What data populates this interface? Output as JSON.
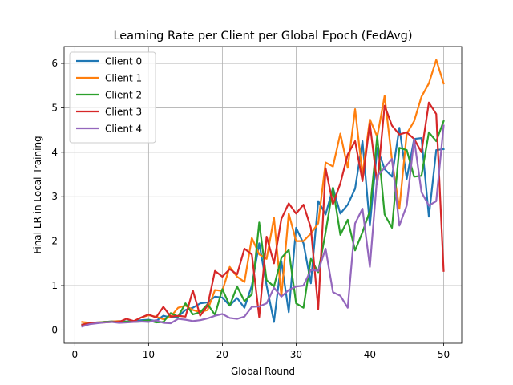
{
  "chart_data": {
    "type": "line",
    "title": "Learning Rate per Client per Global Epoch (FedAvg)",
    "xlabel": "Global Round",
    "ylabel": "Final LR in Local Training",
    "xlim": [
      -1.45,
      52.45
    ],
    "ylim": [
      -0.3,
      6.38
    ],
    "xticks": [
      0,
      10,
      20,
      30,
      40,
      50
    ],
    "yticks": [
      0,
      1,
      2,
      3,
      4,
      5,
      6
    ],
    "grid": true,
    "legend": "top-left",
    "x": [
      1,
      2,
      3,
      4,
      5,
      6,
      7,
      8,
      9,
      10,
      11,
      12,
      13,
      14,
      15,
      16,
      17,
      18,
      19,
      20,
      21,
      22,
      23,
      24,
      25,
      26,
      27,
      28,
      29,
      30,
      31,
      32,
      33,
      34,
      35,
      36,
      37,
      38,
      39,
      40,
      41,
      42,
      43,
      44,
      45,
      46,
      47,
      48,
      49,
      50
    ],
    "series": [
      {
        "name": "Client 0",
        "color": "#1f77b4",
        "values": [
          0.1,
          0.15,
          0.17,
          0.18,
          0.19,
          0.2,
          0.19,
          0.2,
          0.22,
          0.23,
          0.2,
          0.32,
          0.28,
          0.3,
          0.45,
          0.5,
          0.6,
          0.62,
          0.75,
          0.73,
          0.55,
          0.72,
          0.5,
          1.0,
          1.95,
          1.0,
          0.18,
          1.55,
          0.4,
          2.3,
          1.95,
          1.05,
          2.9,
          2.6,
          3.2,
          2.62,
          2.82,
          3.18,
          4.25,
          2.35,
          4.1,
          3.62,
          3.45,
          4.55,
          3.4,
          4.3,
          4.32,
          2.55,
          4.05,
          4.07
        ]
      },
      {
        "name": "Client 1",
        "color": "#ff7f0e",
        "values": [
          0.18,
          0.16,
          0.17,
          0.18,
          0.19,
          0.2,
          0.18,
          0.2,
          0.28,
          0.33,
          0.3,
          0.24,
          0.3,
          0.5,
          0.55,
          0.45,
          0.4,
          0.45,
          0.9,
          0.88,
          1.42,
          1.2,
          1.08,
          2.07,
          1.7,
          1.6,
          2.53,
          0.75,
          2.62,
          2.0,
          2.0,
          2.17,
          2.4,
          3.77,
          3.68,
          4.42,
          3.65,
          4.97,
          3.5,
          4.74,
          4.35,
          5.27,
          3.82,
          2.73,
          4.42,
          4.7,
          5.25,
          5.55,
          6.08,
          5.55
        ]
      },
      {
        "name": "Client 2",
        "color": "#2ca02c",
        "values": [
          0.12,
          0.15,
          0.16,
          0.18,
          0.19,
          0.17,
          0.19,
          0.18,
          0.19,
          0.22,
          0.17,
          0.18,
          0.38,
          0.3,
          0.6,
          0.35,
          0.4,
          0.58,
          0.34,
          0.92,
          0.55,
          0.98,
          0.65,
          0.8,
          2.42,
          1.12,
          0.98,
          1.62,
          1.8,
          0.6,
          0.5,
          1.6,
          1.3,
          2.2,
          3.2,
          2.14,
          2.48,
          1.79,
          2.2,
          2.68,
          4.37,
          2.6,
          2.3,
          4.1,
          4.05,
          3.45,
          3.47,
          4.45,
          4.25,
          4.7
        ]
      },
      {
        "name": "Client 3",
        "color": "#d62728",
        "values": [
          0.12,
          0.15,
          0.16,
          0.17,
          0.18,
          0.18,
          0.25,
          0.2,
          0.28,
          0.35,
          0.28,
          0.52,
          0.3,
          0.32,
          0.3,
          0.89,
          0.32,
          0.55,
          1.33,
          1.2,
          1.37,
          1.25,
          1.83,
          1.7,
          0.29,
          2.1,
          1.5,
          2.5,
          2.85,
          2.62,
          2.82,
          2.3,
          0.47,
          3.64,
          2.83,
          3.3,
          3.95,
          4.25,
          3.35,
          4.65,
          3.28,
          5.05,
          4.6,
          4.4,
          4.45,
          4.3,
          4.0,
          5.12,
          4.86,
          1.33
        ]
      },
      {
        "name": "Client 4",
        "color": "#9467bd",
        "values": [
          0.08,
          0.13,
          0.15,
          0.17,
          0.18,
          0.16,
          0.17,
          0.18,
          0.19,
          0.18,
          0.22,
          0.16,
          0.15,
          0.25,
          0.23,
          0.2,
          0.22,
          0.26,
          0.32,
          0.36,
          0.27,
          0.25,
          0.3,
          0.52,
          0.53,
          0.6,
          0.95,
          0.75,
          0.9,
          0.98,
          1.0,
          1.35,
          1.33,
          1.83,
          0.85,
          0.77,
          0.5,
          2.4,
          2.73,
          1.42,
          3.47,
          3.65,
          3.85,
          2.35,
          2.8,
          4.3,
          3.1,
          2.8,
          2.9,
          4.6
        ]
      }
    ]
  }
}
